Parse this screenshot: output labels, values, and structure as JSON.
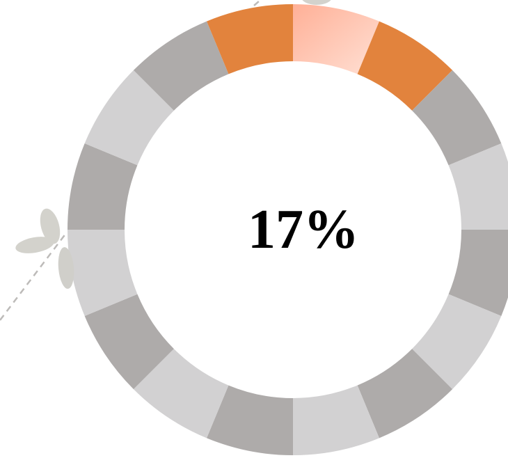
{
  "progress": {
    "label": "17%"
  }
}
